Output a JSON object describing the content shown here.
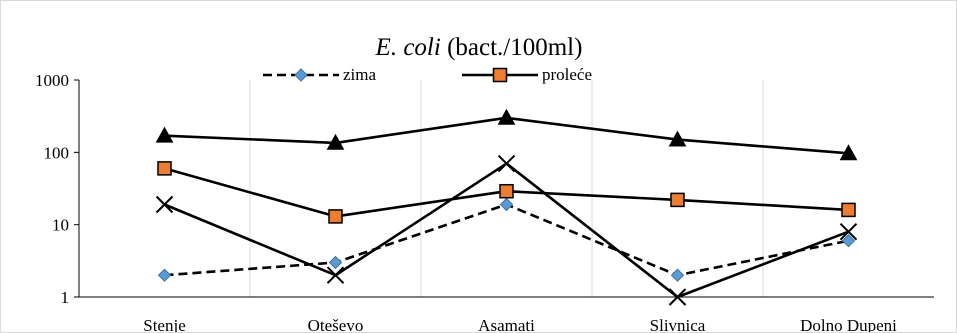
{
  "chart_data": {
    "type": "line",
    "title_italic": "E. coli",
    "title_rest": " (bact./100ml)",
    "xlabel": "",
    "ylabel": "",
    "y_scale": "log",
    "ylim": [
      1,
      1000
    ],
    "y_ticks": [
      1,
      10,
      100,
      1000
    ],
    "y_tick_labels": [
      "1",
      "10",
      "100",
      "1000"
    ],
    "categories": [
      "Stenje",
      "Oteševo",
      "Asamati",
      "Slivnica",
      "Dolno Dupeni"
    ],
    "grid": "vertical",
    "legend_position": "top",
    "series": [
      {
        "name": "zima",
        "in_legend": true,
        "values": [
          2,
          3,
          19,
          2,
          6
        ],
        "color": "#000000",
        "dash": "dashed",
        "marker": "diamond",
        "marker_color": "#5b9bd5"
      },
      {
        "name": "proleće",
        "in_legend": true,
        "values": [
          60,
          13,
          29,
          22,
          16
        ],
        "color": "#000000",
        "dash": "solid",
        "marker": "square",
        "marker_color": "#ed7d31"
      },
      {
        "name": "",
        "in_legend": false,
        "values": [
          170,
          135,
          300,
          150,
          97
        ],
        "color": "#000000",
        "dash": "solid",
        "marker": "triangle",
        "marker_color": "#000000"
      },
      {
        "name": "",
        "in_legend": false,
        "values": [
          19,
          2,
          70,
          1,
          8
        ],
        "color": "#000000",
        "dash": "solid",
        "marker": "x",
        "marker_color": "#000000"
      }
    ]
  }
}
